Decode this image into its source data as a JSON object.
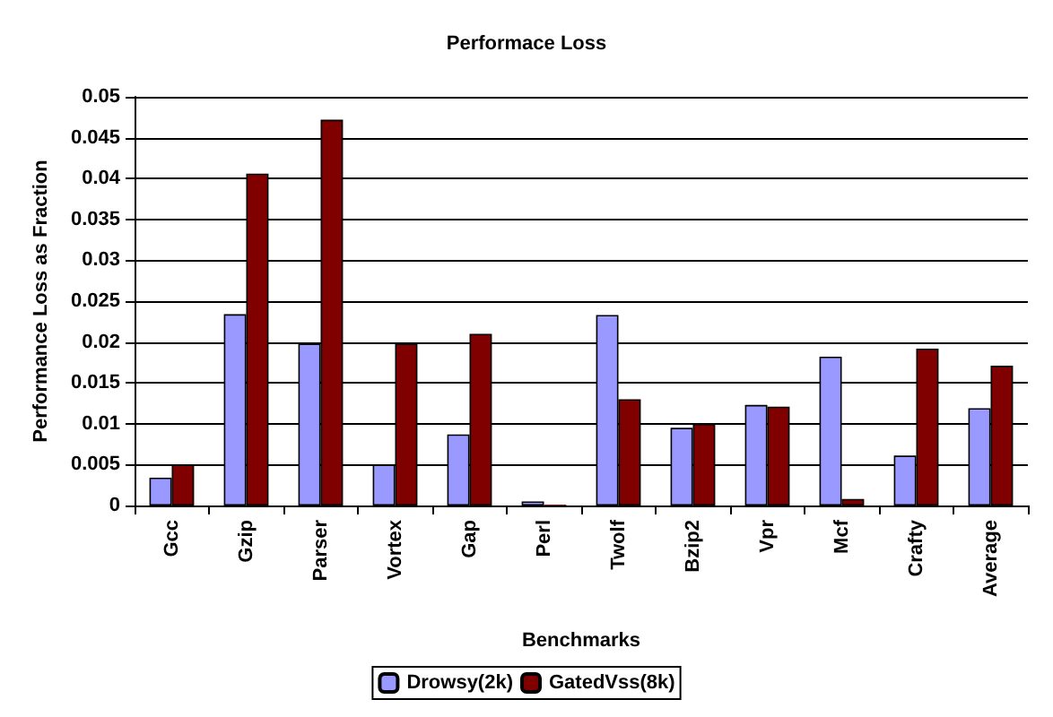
{
  "chart_data": {
    "type": "bar",
    "title": "Performace Loss",
    "xlabel": "Benchmarks",
    "ylabel": "Performance Loss as Fraction",
    "categories": [
      "Gcc",
      "Gzip",
      "Parser",
      "Vortex",
      "Gap",
      "Perl",
      "Twolf",
      "Bzip2",
      "Vpr",
      "Mcf",
      "Crafty",
      "Average"
    ],
    "series": [
      {
        "name": "Drowsy(2k)",
        "color": "#9999ff",
        "values": [
          0.0034,
          0.0234,
          0.0198,
          0.005,
          0.0087,
          0.0005,
          0.0233,
          0.0095,
          0.0123,
          0.0182,
          0.0061,
          0.0119
        ]
      },
      {
        "name": "GatedVss(8k)",
        "color": "#800000",
        "values": [
          0.005,
          0.0406,
          0.0472,
          0.0198,
          0.021,
          0.0001,
          0.013,
          0.01,
          0.0121,
          0.0008,
          0.0192,
          0.0171
        ]
      }
    ],
    "ylim": [
      0,
      0.05
    ],
    "yticks": [
      0,
      0.005,
      0.01,
      0.015,
      0.02,
      0.025,
      0.03,
      0.035,
      0.04,
      0.045,
      0.05
    ],
    "grid": "y",
    "legend": "bottom"
  }
}
